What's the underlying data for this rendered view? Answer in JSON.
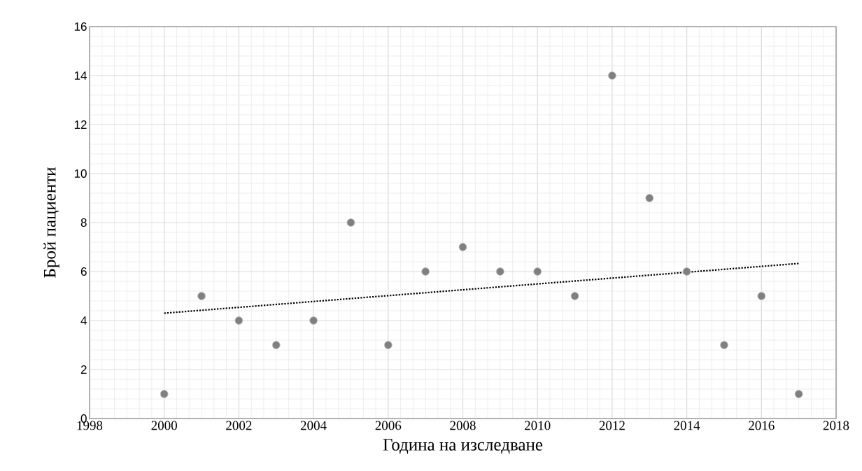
{
  "chart_data": {
    "type": "scatter",
    "xlabel": "Година на изследване",
    "ylabel": "Брой пациенти",
    "xlim": [
      1998,
      2018
    ],
    "ylim": [
      0,
      16
    ],
    "xticks": [
      1998,
      2000,
      2002,
      2004,
      2006,
      2008,
      2010,
      2012,
      2014,
      2016,
      2018
    ],
    "yticks": [
      0,
      2,
      4,
      6,
      8,
      10,
      12,
      14,
      16
    ],
    "grid": true,
    "series": [
      {
        "color": "#808080",
        "marker": "circle",
        "x": [
          2000,
          2001,
          2002,
          2003,
          2004,
          2005,
          2006,
          2007,
          2008,
          2009,
          2010,
          2011,
          2012,
          2013,
          2014,
          2015,
          2016,
          2017
        ],
        "values": [
          1,
          5,
          4,
          3,
          4,
          8,
          3,
          6,
          7,
          6,
          6,
          5,
          14,
          9,
          6,
          3,
          5,
          1
        ]
      },
      {
        "type": "line",
        "color": "#000000",
        "line_style": "dotted",
        "marker": "none",
        "x": [
          2000,
          2017
        ],
        "values": [
          4.3,
          6.33
        ]
      }
    ]
  }
}
